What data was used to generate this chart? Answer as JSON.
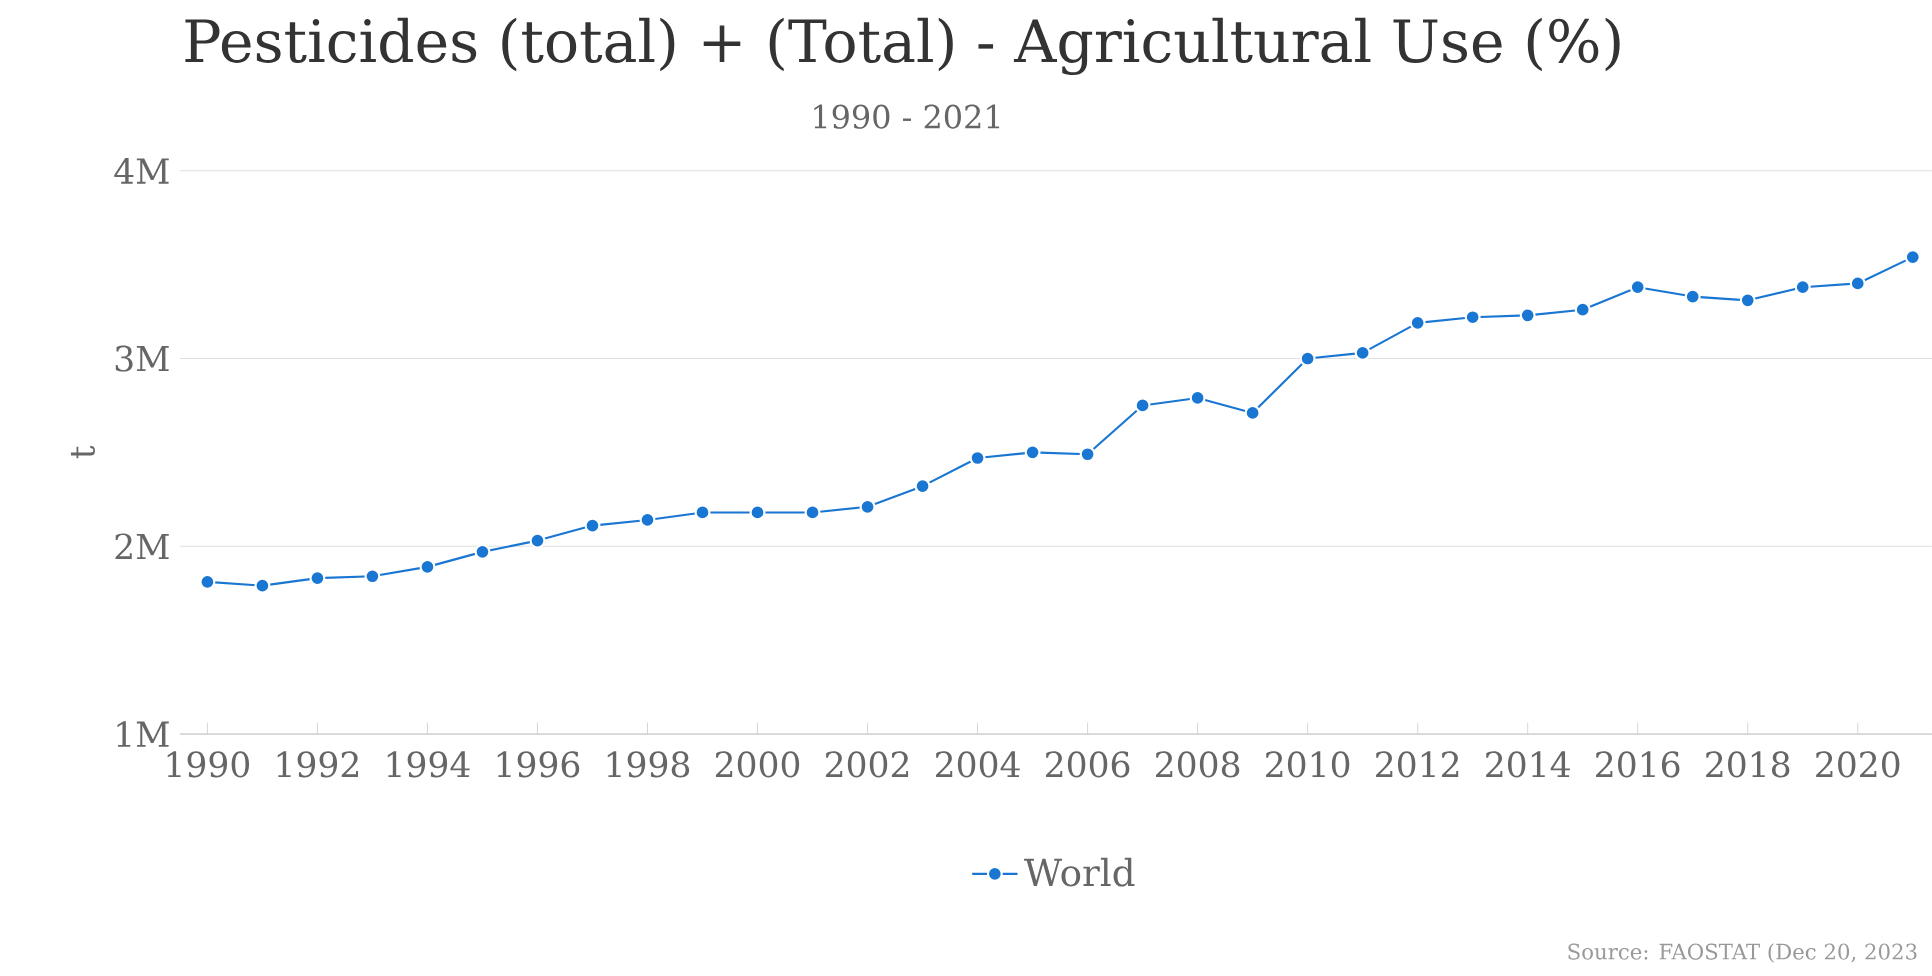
{
  "chart_data": {
    "type": "line",
    "title": "Pesticides (total) + (Total) - Agricultural Use (%)",
    "subtitle": "1990 - 2021",
    "ylabel": "t",
    "x": [
      1990,
      1991,
      1992,
      1993,
      1994,
      1995,
      1996,
      1997,
      1998,
      1999,
      2000,
      2001,
      2002,
      2003,
      2004,
      2005,
      2006,
      2007,
      2008,
      2009,
      2010,
      2011,
      2012,
      2013,
      2014,
      2015,
      2016,
      2017,
      2018,
      2019,
      2020,
      2021
    ],
    "series": [
      {
        "name": "World",
        "color": "#1976d2",
        "values": [
          1810000,
          1790000,
          1830000,
          1840000,
          1890000,
          1970000,
          2030000,
          2110000,
          2140000,
          2180000,
          2180000,
          2180000,
          2210000,
          2320000,
          2470000,
          2500000,
          2490000,
          2750000,
          2790000,
          2710000,
          3000000,
          3030000,
          3190000,
          3220000,
          3230000,
          3260000,
          3380000,
          3330000,
          3310000,
          3380000,
          3400000,
          3540000
        ]
      }
    ],
    "xlim": [
      1989.5,
      2021.35
    ],
    "xticks": [
      1990,
      1992,
      1994,
      1996,
      1998,
      2000,
      2002,
      2004,
      2006,
      2008,
      2010,
      2012,
      2014,
      2016,
      2018,
      2020
    ],
    "ylim": [
      1000000,
      4000000
    ],
    "yticks": [
      {
        "value": 1000000,
        "label": "1M"
      },
      {
        "value": 2000000,
        "label": "2M"
      },
      {
        "value": 3000000,
        "label": "3M"
      },
      {
        "value": 4000000,
        "label": "4M"
      }
    ],
    "grid": "y",
    "legend": "bottom",
    "marker": "circle",
    "line_style": "solid",
    "annotations": [
      "Source: FAOSTAT (Dec 20, 2023"
    ]
  }
}
